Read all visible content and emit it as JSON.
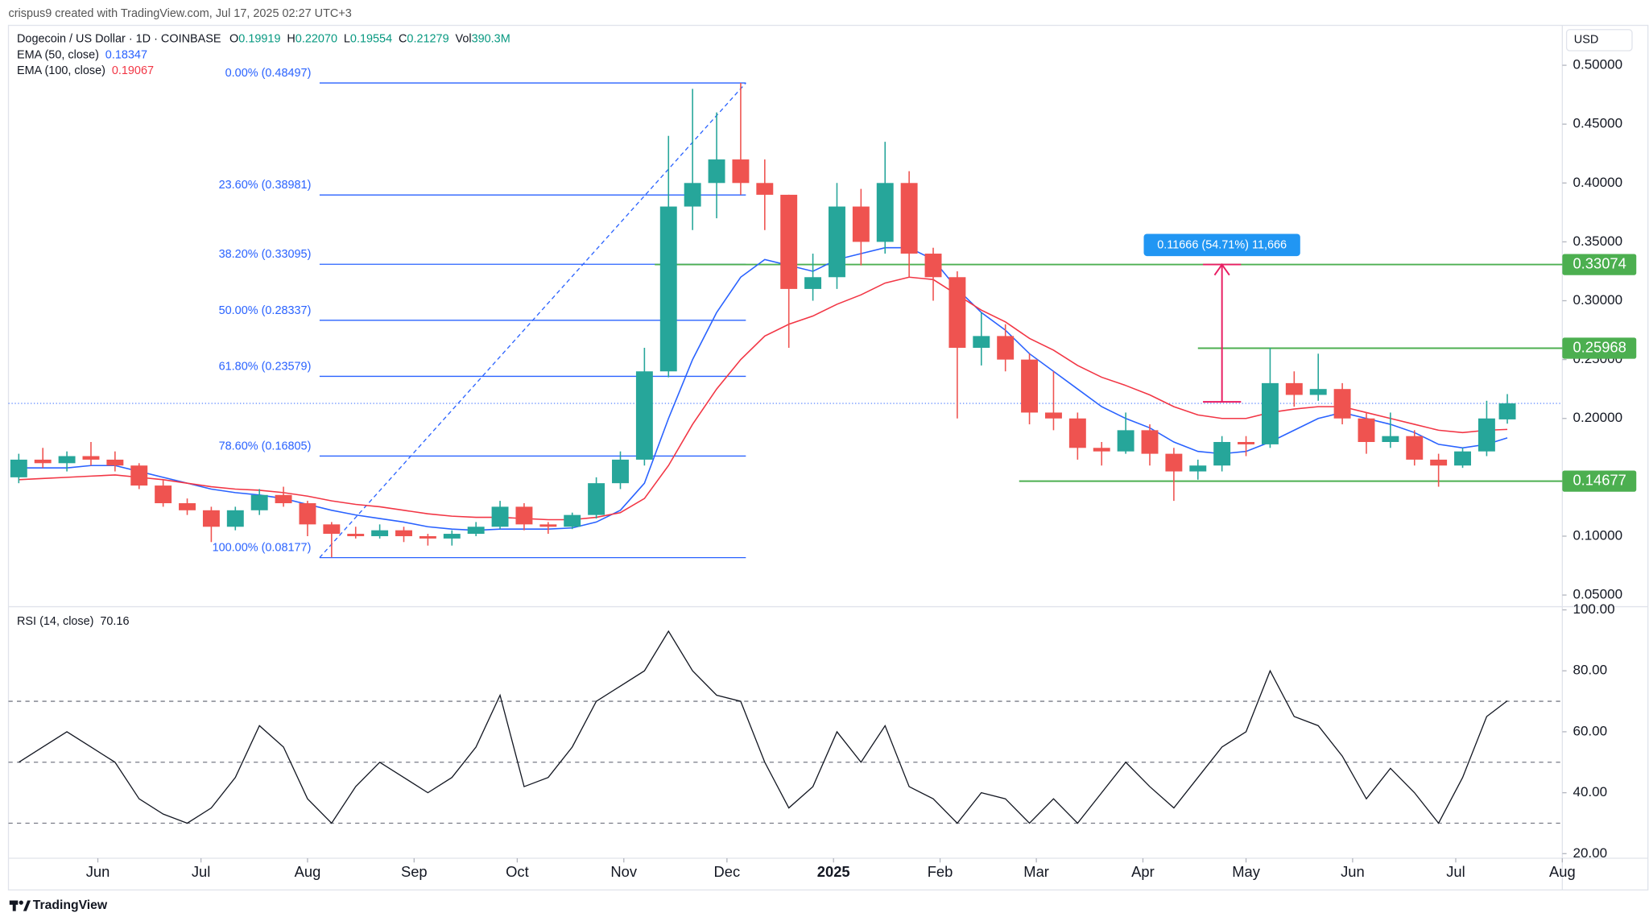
{
  "header": "crispus9 created with TradingView.com, Jul 17, 2025 02:27 UTC+3",
  "footer": "TradingView",
  "chart_data": [
    {
      "type": "candlestick",
      "title": "Dogecoin / US Dollar · 1D · COINBASE",
      "currency": "USD",
      "ohlcv": [
        [
          "O",
          "0.19919"
        ],
        [
          "H",
          "0.22070"
        ],
        [
          "L",
          "0.19554"
        ],
        [
          "C",
          "0.21279"
        ],
        [
          "Vol",
          "390.3M"
        ]
      ],
      "legend_value_color": "#089981",
      "x": [
        3,
        10,
        17,
        24,
        31,
        38,
        45,
        52,
        59,
        66,
        73,
        80,
        87,
        94,
        101,
        108,
        115,
        122,
        129,
        136,
        143,
        150,
        157,
        164,
        171,
        178,
        185,
        192,
        199,
        206,
        213,
        220,
        227,
        234,
        241,
        248,
        255,
        262,
        269,
        276,
        283,
        290,
        297,
        304,
        311,
        318,
        325,
        332,
        339,
        346,
        353,
        360,
        367,
        374,
        381,
        388,
        395,
        402,
        409,
        416,
        423,
        430,
        436
      ],
      "xlim": [
        0,
        452
      ],
      "xticks": [
        {
          "value": 26,
          "label": "Jun"
        },
        {
          "value": 56,
          "label": "Jul"
        },
        {
          "value": 87,
          "label": "Aug"
        },
        {
          "value": 118,
          "label": "Sep"
        },
        {
          "value": 148,
          "label": "Oct"
        },
        {
          "value": 179,
          "label": "Nov"
        },
        {
          "value": 209,
          "label": "Dec"
        },
        {
          "value": 240,
          "label": "2025",
          "bold": true
        },
        {
          "value": 271,
          "label": "Feb"
        },
        {
          "value": 299,
          "label": "Mar"
        },
        {
          "value": 330,
          "label": "Apr"
        },
        {
          "value": 360,
          "label": "May"
        },
        {
          "value": 391,
          "label": "Jun"
        },
        {
          "value": 421,
          "label": "Jul"
        },
        {
          "value": 452,
          "label": "Aug"
        }
      ],
      "ylim": [
        0.041,
        0.533
      ],
      "yticks": [
        {
          "value": 0.5,
          "label": "0.50000"
        },
        {
          "value": 0.45,
          "label": "0.45000"
        },
        {
          "value": 0.4,
          "label": "0.40000"
        },
        {
          "value": 0.35,
          "label": "0.35000"
        },
        {
          "value": 0.3,
          "label": "0.30000"
        },
        {
          "value": 0.25,
          "label": "0.25000"
        },
        {
          "value": 0.2,
          "label": "0.20000"
        },
        {
          "value": 0.15,
          "label": "0.15000"
        },
        {
          "value": 0.1,
          "label": "0.10000"
        },
        {
          "value": 0.05,
          "label": "0.05000"
        }
      ],
      "up_color": "#26a69a",
      "down_color": "#ef5350",
      "ohlc": [
        [
          0.15,
          0.17,
          0.145,
          0.165
        ],
        [
          0.165,
          0.175,
          0.158,
          0.162
        ],
        [
          0.162,
          0.172,
          0.155,
          0.168
        ],
        [
          0.168,
          0.18,
          0.16,
          0.165
        ],
        [
          0.165,
          0.172,
          0.155,
          0.16
        ],
        [
          0.16,
          0.162,
          0.14,
          0.143
        ],
        [
          0.143,
          0.148,
          0.125,
          0.128
        ],
        [
          0.128,
          0.132,
          0.118,
          0.122
        ],
        [
          0.122,
          0.125,
          0.095,
          0.108
        ],
        [
          0.108,
          0.125,
          0.105,
          0.122
        ],
        [
          0.122,
          0.14,
          0.118,
          0.135
        ],
        [
          0.135,
          0.142,
          0.125,
          0.128
        ],
        [
          0.128,
          0.13,
          0.1,
          0.11
        ],
        [
          0.11,
          0.112,
          0.082,
          0.102
        ],
        [
          0.102,
          0.108,
          0.098,
          0.1
        ],
        [
          0.1,
          0.11,
          0.098,
          0.105
        ],
        [
          0.105,
          0.108,
          0.095,
          0.1
        ],
        [
          0.1,
          0.102,
          0.092,
          0.098
        ],
        [
          0.098,
          0.105,
          0.092,
          0.102
        ],
        [
          0.102,
          0.112,
          0.1,
          0.108
        ],
        [
          0.108,
          0.13,
          0.106,
          0.125
        ],
        [
          0.125,
          0.128,
          0.105,
          0.11
        ],
        [
          0.11,
          0.112,
          0.102,
          0.108
        ],
        [
          0.108,
          0.12,
          0.106,
          0.118
        ],
        [
          0.118,
          0.15,
          0.115,
          0.145
        ],
        [
          0.145,
          0.172,
          0.14,
          0.165
        ],
        [
          0.165,
          0.26,
          0.16,
          0.24
        ],
        [
          0.24,
          0.44,
          0.235,
          0.38
        ],
        [
          0.38,
          0.48,
          0.36,
          0.4
        ],
        [
          0.4,
          0.46,
          0.37,
          0.42
        ],
        [
          0.42,
          0.485,
          0.39,
          0.4
        ],
        [
          0.4,
          0.42,
          0.36,
          0.39
        ],
        [
          0.39,
          0.39,
          0.26,
          0.31
        ],
        [
          0.31,
          0.34,
          0.3,
          0.32
        ],
        [
          0.32,
          0.4,
          0.31,
          0.38
        ],
        [
          0.38,
          0.395,
          0.33,
          0.35
        ],
        [
          0.35,
          0.435,
          0.34,
          0.4
        ],
        [
          0.4,
          0.41,
          0.32,
          0.34
        ],
        [
          0.34,
          0.345,
          0.3,
          0.32
        ],
        [
          0.32,
          0.325,
          0.2,
          0.26
        ],
        [
          0.26,
          0.29,
          0.245,
          0.27
        ],
        [
          0.27,
          0.28,
          0.24,
          0.25
        ],
        [
          0.25,
          0.255,
          0.195,
          0.205
        ],
        [
          0.205,
          0.24,
          0.19,
          0.2
        ],
        [
          0.2,
          0.205,
          0.165,
          0.175
        ],
        [
          0.175,
          0.18,
          0.16,
          0.172
        ],
        [
          0.172,
          0.205,
          0.17,
          0.19
        ],
        [
          0.19,
          0.195,
          0.16,
          0.17
        ],
        [
          0.17,
          0.175,
          0.13,
          0.155
        ],
        [
          0.155,
          0.165,
          0.148,
          0.16
        ],
        [
          0.16,
          0.185,
          0.155,
          0.18
        ],
        [
          0.18,
          0.185,
          0.168,
          0.178
        ],
        [
          0.178,
          0.26,
          0.175,
          0.23
        ],
        [
          0.23,
          0.24,
          0.21,
          0.22
        ],
        [
          0.22,
          0.255,
          0.215,
          0.225
        ],
        [
          0.225,
          0.23,
          0.195,
          0.2
        ],
        [
          0.2,
          0.205,
          0.17,
          0.18
        ],
        [
          0.18,
          0.205,
          0.175,
          0.185
        ],
        [
          0.185,
          0.19,
          0.16,
          0.165
        ],
        [
          0.165,
          0.17,
          0.142,
          0.16
        ],
        [
          0.16,
          0.175,
          0.158,
          0.172
        ],
        [
          0.172,
          0.215,
          0.168,
          0.2
        ],
        [
          0.19919,
          0.2207,
          0.19554,
          0.21279
        ]
      ],
      "series": [
        {
          "name": "EMA (50, close)",
          "last": "0.18347",
          "color": "#2962ff",
          "values": [
            0.158,
            0.158,
            0.158,
            0.16,
            0.16,
            0.155,
            0.15,
            0.145,
            0.14,
            0.137,
            0.135,
            0.132,
            0.127,
            0.122,
            0.118,
            0.115,
            0.112,
            0.108,
            0.106,
            0.105,
            0.106,
            0.106,
            0.106,
            0.107,
            0.112,
            0.122,
            0.145,
            0.2,
            0.25,
            0.29,
            0.32,
            0.335,
            0.33,
            0.325,
            0.335,
            0.34,
            0.345,
            0.345,
            0.335,
            0.31,
            0.29,
            0.275,
            0.255,
            0.24,
            0.225,
            0.21,
            0.2,
            0.192,
            0.18,
            0.172,
            0.17,
            0.172,
            0.18,
            0.19,
            0.2,
            0.205,
            0.2,
            0.195,
            0.188,
            0.178,
            0.175,
            0.178,
            0.18347
          ]
        },
        {
          "name": "EMA (100, close)",
          "last": "0.19067",
          "color": "#f23645",
          "values": [
            0.148,
            0.149,
            0.15,
            0.151,
            0.152,
            0.15,
            0.148,
            0.145,
            0.142,
            0.14,
            0.139,
            0.137,
            0.134,
            0.13,
            0.127,
            0.125,
            0.122,
            0.119,
            0.117,
            0.116,
            0.116,
            0.115,
            0.114,
            0.114,
            0.116,
            0.12,
            0.132,
            0.16,
            0.195,
            0.225,
            0.25,
            0.27,
            0.28,
            0.287,
            0.297,
            0.305,
            0.315,
            0.32,
            0.318,
            0.305,
            0.292,
            0.282,
            0.268,
            0.258,
            0.245,
            0.235,
            0.228,
            0.22,
            0.21,
            0.203,
            0.2,
            0.2,
            0.205,
            0.208,
            0.21,
            0.21,
            0.205,
            0.2,
            0.195,
            0.19,
            0.188,
            0.19,
            0.19067
          ]
        }
      ],
      "fib_range": [
        90.5,
        214.5
      ],
      "fib_color": "#2962ff",
      "fib_levels": [
        {
          "label": "0.00% (0.48497)",
          "value": 0.48497
        },
        {
          "label": "23.60% (0.38981)",
          "value": 0.38981
        },
        {
          "label": "38.20% (0.33095)",
          "value": 0.33095
        },
        {
          "label": "50.00% (0.28337)",
          "value": 0.28337
        },
        {
          "label": "61.80% (0.23579)",
          "value": 0.23579
        },
        {
          "label": "78.60% (0.16805)",
          "value": 0.16805
        },
        {
          "label": "100.00% (0.08177)",
          "value": 0.08177
        }
      ],
      "levels": [
        {
          "value": 0.33074,
          "from": 188
        },
        {
          "value": 0.25968,
          "from": 346
        },
        {
          "value": 0.14677,
          "from": 294
        }
      ],
      "level_color": "#4caf50",
      "measure": {
        "x": 353,
        "from": 0.21408,
        "to": 0.33074,
        "label": "0.11666 (54.71%) 11,666",
        "color": "#e91e63",
        "label_color": "#2196f3"
      }
    },
    {
      "type": "line",
      "title": "RSI (14, close)",
      "last": "70.16",
      "color": "#131722",
      "ylim": [
        18.5,
        100.7
      ],
      "yticks": [
        {
          "value": 100,
          "label": "100.00"
        },
        {
          "value": 80,
          "label": "80.00"
        },
        {
          "value": 60,
          "label": "60.00"
        },
        {
          "value": 40,
          "label": "40.00"
        },
        {
          "value": 20,
          "label": "20.00"
        }
      ],
      "levels": [
        70,
        50,
        30
      ],
      "values": [
        50,
        55,
        60,
        55,
        50,
        38,
        33,
        30,
        35,
        45,
        62,
        55,
        38,
        30,
        42,
        50,
        45,
        40,
        45,
        55,
        72,
        42,
        45,
        55,
        70,
        75,
        80,
        93,
        80,
        72,
        70,
        50,
        35,
        42,
        60,
        50,
        62,
        42,
        38,
        30,
        40,
        38,
        30,
        38,
        30,
        40,
        50,
        42,
        35,
        45,
        55,
        60,
        80,
        65,
        62,
        52,
        38,
        48,
        40,
        30,
        45,
        65,
        70.16
      ]
    }
  ]
}
